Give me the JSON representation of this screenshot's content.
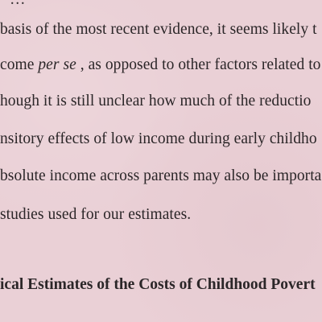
{
  "document": {
    "lines": [
      "basis of the most recent evidence, it seems likely t",
      "come",
      "per se",
      ", as opposed to other factors related to",
      "hough it is still unclear how much of the reductio",
      "nsitory effects of low income during early childho",
      "bsolute income across parents may also be importa",
      "studies used for our estimates."
    ],
    "heading": "ical Estimates of the Costs of Childhood Povert"
  }
}
